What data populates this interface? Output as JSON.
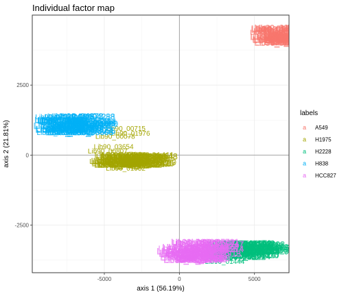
{
  "chart_data": {
    "type": "scatter",
    "title": "Individual factor map",
    "xlabel": "axis 1 (56.19%)",
    "ylabel": "axis 2 (21.81%)",
    "xlim": [
      -9800,
      7300
    ],
    "ylim": [
      -4200,
      5000
    ],
    "x_ticks": [
      -5000,
      0,
      5000
    ],
    "x_tick_labels": [
      "-5000",
      "0",
      "5000"
    ],
    "y_ticks": [
      -2500,
      0,
      2500
    ],
    "y_tick_labels": [
      "-2500",
      "0",
      "2500"
    ],
    "grid": true,
    "legend": {
      "title": "labels",
      "position": "right"
    },
    "series": [
      {
        "name": "A549",
        "color": "#F8766D",
        "cluster": {
          "x": [
            4600,
            7300
          ],
          "y": [
            3880,
            4450
          ]
        },
        "labels": [
          {
            "text": "Lib90_00001",
            "x": 4700,
            "y": 4300
          },
          {
            "text": "Lib90_00002",
            "x": 5600,
            "y": 4100
          }
        ]
      },
      {
        "name": "H1975",
        "color": "#A3A500",
        "cluster": {
          "x": [
            -5900,
            -2600
          ],
          "y": [
            -450,
            -100
          ]
        },
        "labels": [
          {
            "text": "Lib90_00715",
            "x": -4900,
            "y": 870
          },
          {
            "text": "Lib90_01976",
            "x": -4600,
            "y": 690
          },
          {
            "text": "Lib90_00078",
            "x": -5600,
            "y": 580
          },
          {
            "text": "Lib90_03654",
            "x": -5700,
            "y": 220
          },
          {
            "text": "Lib90_00807",
            "x": -6100,
            "y": 60
          },
          {
            "text": "Lib90_00521",
            "x": -6000,
            "y": -310
          },
          {
            "text": "Lib90_01952",
            "x": -4900,
            "y": -560
          }
        ]
      },
      {
        "name": "H2228",
        "color": "#00BF7D",
        "cluster": {
          "x": [
            1700,
            4900
          ],
          "y": [
            -3750,
            -3250
          ]
        },
        "labels": [
          {
            "text": "Lib90_06825",
            "x": 2000,
            "y": -3220
          },
          {
            "text": "Lib90_01444",
            "x": 1700,
            "y": -3880
          }
        ]
      },
      {
        "name": "H838",
        "color": "#00B0F6",
        "cluster": {
          "x": [
            -9800,
            -6700
          ],
          "y": [
            700,
            1300
          ]
        },
        "labels": [
          {
            "text": "Lib90_02525",
            "x": -9600,
            "y": 1280
          },
          {
            "text": "Lib90_00987",
            "x": -9500,
            "y": 720
          }
        ]
      },
      {
        "name": "HCC827",
        "color": "#E76BF3",
        "cluster": {
          "x": [
            -1500,
            1700
          ],
          "y": [
            -3850,
            -3200
          ]
        },
        "labels": [
          {
            "text": "Lib90_03361",
            "x": -1400,
            "y": -3400
          },
          {
            "text": "Lib90_02288",
            "x": -500,
            "y": -3600
          }
        ]
      }
    ]
  }
}
